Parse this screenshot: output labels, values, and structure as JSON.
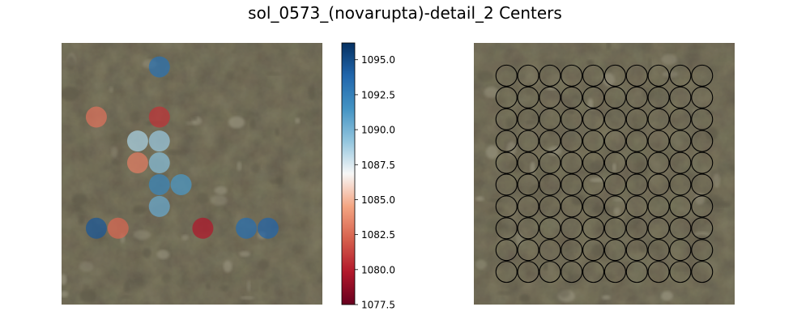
{
  "title": "sol_0573_(novarupta)-detail_2 Centers",
  "colors": {
    "terrain_base": "#827c64",
    "terrain_light": "#9a9580",
    "terrain_dark": "#5e5a48",
    "circle_edge": "#000000",
    "colorbar_low": "#67001f",
    "colorbar_mid": "#f7f7f7",
    "colorbar_high": "#053061"
  },
  "chart_data": [
    {
      "type": "scatter",
      "subtype": "colored-points-over-image",
      "image": "terrain photo",
      "axes": "off",
      "grid": false,
      "colormap": "RdBu",
      "xlim": [
        0,
        12
      ],
      "ylim": [
        0,
        12
      ],
      "points": [
        {
          "x": 4.5,
          "y": 10.9,
          "value": 1093.3
        },
        {
          "x": 1.6,
          "y": 8.6,
          "value": 1082.8
        },
        {
          "x": 4.5,
          "y": 8.6,
          "value": 1080.7
        },
        {
          "x": 3.5,
          "y": 7.5,
          "value": 1088.6
        },
        {
          "x": 4.5,
          "y": 7.5,
          "value": 1089.0
        },
        {
          "x": 3.5,
          "y": 6.5,
          "value": 1083.2
        },
        {
          "x": 4.5,
          "y": 6.5,
          "value": 1089.5
        },
        {
          "x": 4.5,
          "y": 5.5,
          "value": 1092.2
        },
        {
          "x": 5.5,
          "y": 5.5,
          "value": 1091.3
        },
        {
          "x": 4.5,
          "y": 4.5,
          "value": 1090.4
        },
        {
          "x": 1.6,
          "y": 3.5,
          "value": 1094.5
        },
        {
          "x": 2.6,
          "y": 3.5,
          "value": 1082.4
        },
        {
          "x": 6.5,
          "y": 3.5,
          "value": 1079.8
        },
        {
          "x": 8.5,
          "y": 3.5,
          "value": 1093.5
        },
        {
          "x": 9.5,
          "y": 3.5,
          "value": 1093.9
        }
      ]
    },
    {
      "type": "colorbar",
      "colormap": "RdBu",
      "range": [
        1077.5,
        1096.2
      ],
      "ticks": [
        1077.5,
        1080.0,
        1082.5,
        1085.0,
        1087.5,
        1090.0,
        1092.5,
        1095.0
      ],
      "tick_labels": [
        "1077.5",
        "1080.0",
        "1082.5",
        "1085.0",
        "1087.5",
        "1090.0",
        "1092.5",
        "1095.0"
      ]
    },
    {
      "type": "scatter",
      "subtype": "circle-grid-over-image",
      "image": "terrain photo",
      "axes": "off",
      "grid": false,
      "xlim": [
        0,
        12
      ],
      "ylim": [
        0,
        12
      ],
      "marker": "hollow circle",
      "rows": 10,
      "columns": 10,
      "grid_x": [
        1.5,
        2.5,
        3.5,
        4.5,
        5.5,
        6.5,
        7.5,
        8.5,
        9.5,
        10.5
      ],
      "grid_y": [
        10.5,
        9.5,
        8.5,
        7.5,
        6.5,
        5.5,
        4.5,
        3.5,
        2.5,
        1.5
      ]
    }
  ]
}
